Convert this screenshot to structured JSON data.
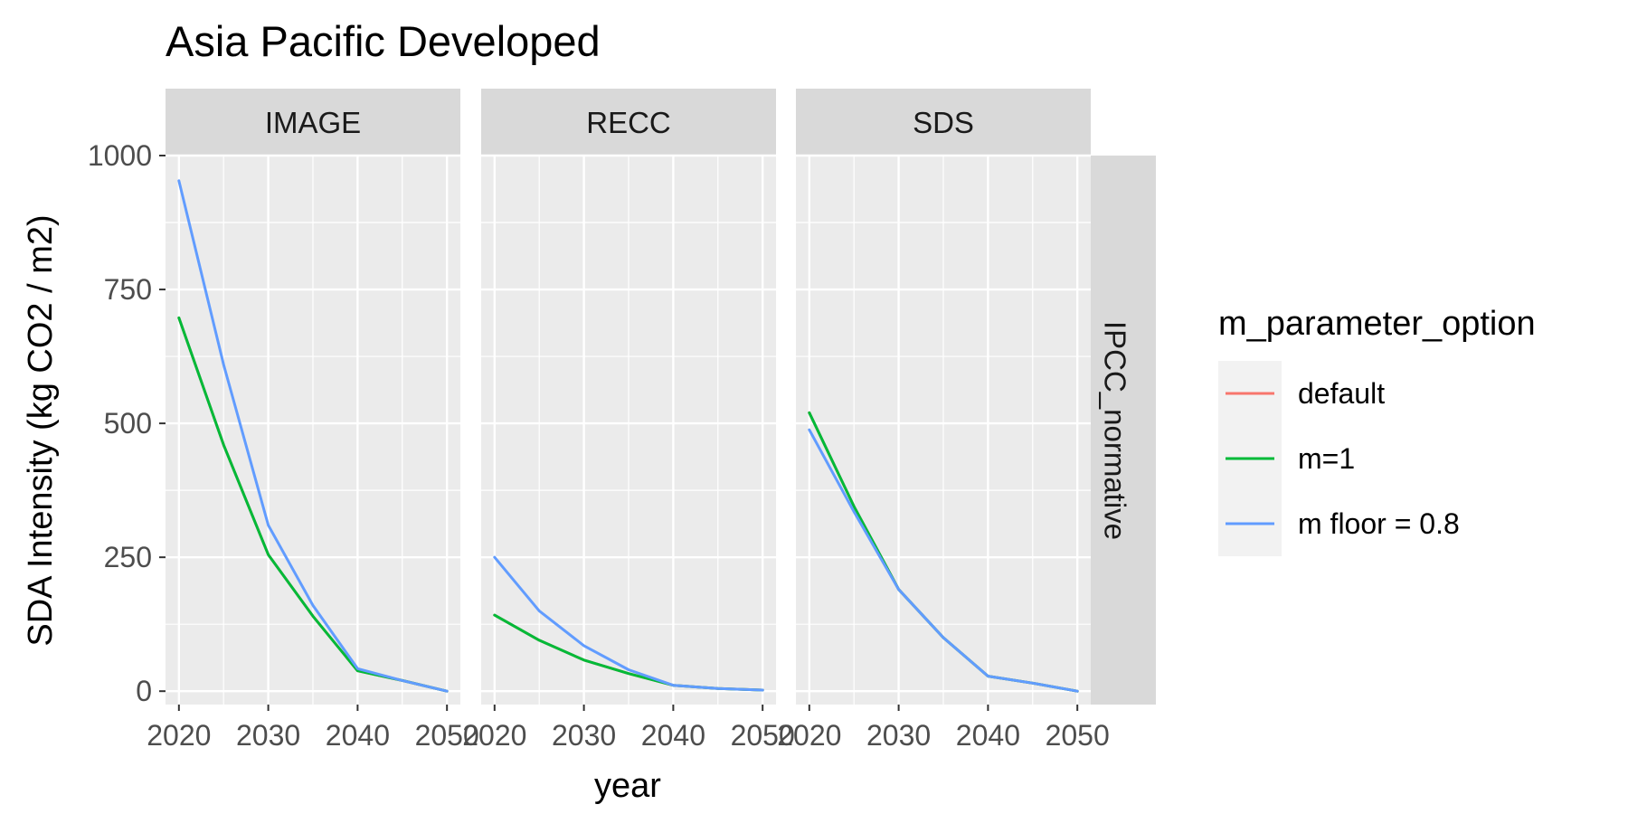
{
  "chart_data": {
    "type": "line",
    "title": "Asia Pacific Developed",
    "xlabel": "year",
    "ylabel": "SDA Intensity (kg CO2 / m2)",
    "xlim": [
      2018.5,
      2051.5
    ],
    "ylim": [
      -25,
      1000
    ],
    "x_ticks": [
      2020,
      2030,
      2040,
      2050
    ],
    "y_ticks": [
      0,
      250,
      500,
      750,
      1000
    ],
    "x_tick_labels": [
      "2020",
      "2030",
      "2040",
      "2050"
    ],
    "y_tick_labels": [
      "0",
      "250",
      "500",
      "750",
      "1000"
    ],
    "grid": true,
    "row_strip": "IPCC_normative",
    "legend": {
      "title": "m_parameter_option",
      "position": "right",
      "entries": [
        {
          "name": "default",
          "color": "#F8766D"
        },
        {
          "name": "m=1",
          "color": "#00BA38"
        },
        {
          "name": "m floor = 0.8",
          "color": "#619CFF"
        }
      ]
    },
    "panels": [
      {
        "name": "IMAGE",
        "x": [
          2020,
          2025,
          2030,
          2035,
          2040,
          2045,
          2050
        ],
        "series": [
          {
            "name": "default",
            "color": "#F8766D",
            "values": [
              697,
              460,
              255,
              140,
              38,
              20,
              0
            ]
          },
          {
            "name": "m=1",
            "color": "#00BA38",
            "values": [
              697,
              460,
              255,
              140,
              38,
              20,
              0
            ]
          },
          {
            "name": "m floor = 0.8",
            "color": "#619CFF",
            "values": [
              953,
              610,
              310,
              160,
              42,
              20,
              0
            ]
          }
        ]
      },
      {
        "name": "RECC",
        "x": [
          2020,
          2025,
          2030,
          2035,
          2040,
          2045,
          2050
        ],
        "series": [
          {
            "name": "default",
            "color": "#F8766D",
            "values": [
              142,
              95,
              58,
              33,
              11,
              5,
              2
            ]
          },
          {
            "name": "m=1",
            "color": "#00BA38",
            "values": [
              142,
              95,
              58,
              33,
              11,
              5,
              2
            ]
          },
          {
            "name": "m floor = 0.8",
            "color": "#619CFF",
            "values": [
              250,
              150,
              85,
              40,
              11,
              5,
              2
            ]
          }
        ]
      },
      {
        "name": "SDS",
        "x": [
          2020,
          2025,
          2030,
          2035,
          2040,
          2045,
          2050
        ],
        "series": [
          {
            "name": "default",
            "color": "#F8766D",
            "values": [
              520,
              345,
              190,
              100,
              28,
              15,
              0
            ]
          },
          {
            "name": "m=1",
            "color": "#00BA38",
            "values": [
              520,
              345,
              190,
              100,
              28,
              15,
              0
            ]
          },
          {
            "name": "m floor = 0.8",
            "color": "#619CFF",
            "values": [
              488,
              335,
              190,
              100,
              28,
              15,
              0
            ]
          }
        ]
      }
    ]
  }
}
